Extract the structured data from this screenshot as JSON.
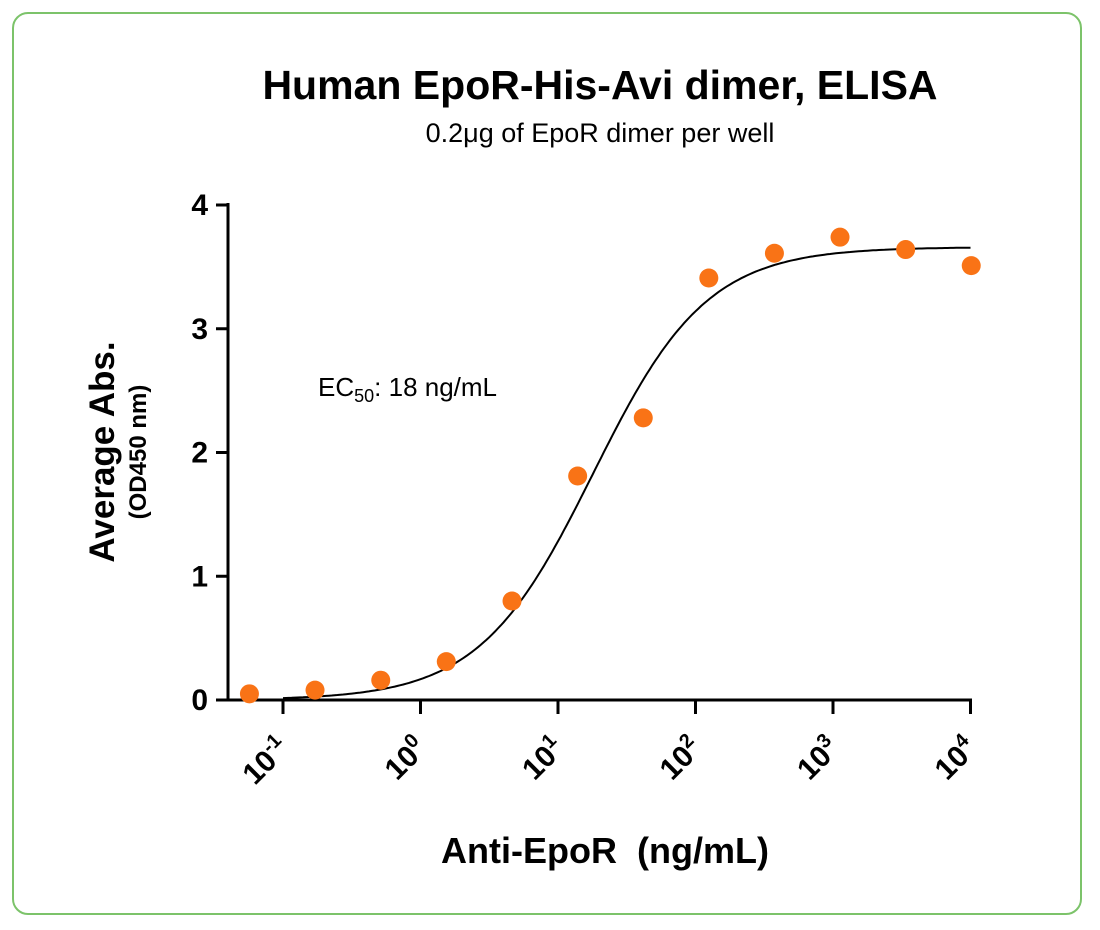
{
  "chart_data": {
    "type": "scatter",
    "title": "Human EpoR-His-Avi dimer, ELISA",
    "subtitle": "0.2μg of EpoR dimer per well",
    "xlabel": "Anti-EpoR  (ng/mL)",
    "ylabel": "Average Abs.",
    "ylabel_sub": "(OD450 nm)",
    "x_scale": "log",
    "xlim": [
      0.05,
      10000
    ],
    "ylim": [
      0,
      4
    ],
    "x_ticks": [
      {
        "base": "10",
        "exp": "-1",
        "value": 0.1
      },
      {
        "base": "10",
        "exp": "0",
        "value": 1
      },
      {
        "base": "10",
        "exp": "1",
        "value": 10
      },
      {
        "base": "10",
        "exp": "2",
        "value": 100
      },
      {
        "base": "10",
        "exp": "3",
        "value": 1000
      },
      {
        "base": "10",
        "exp": "4",
        "value": 10000
      }
    ],
    "y_ticks": [
      "0",
      "1",
      "2",
      "3",
      "4"
    ],
    "annotation": {
      "prefix": "EC",
      "sub": "50",
      "suffix": ": 18 ng/mL"
    },
    "point_color": "#f97316",
    "curve_color": "#000000",
    "series": [
      {
        "x": [
          0.057,
          0.171,
          0.514,
          1.54,
          4.63,
          13.9,
          41.7,
          125,
          375,
          1125,
          3375,
          10125
        ],
        "y": [
          0.05,
          0.08,
          0.16,
          0.31,
          0.8,
          1.81,
          2.28,
          3.41,
          3.61,
          3.74,
          3.64,
          3.51
        ]
      }
    ],
    "fit": {
      "bottom": 0.0,
      "top": 3.66,
      "ec50": 18,
      "hill": 1.05,
      "x_range": [
        0.1,
        10000
      ]
    },
    "grid": false,
    "legend": "none"
  }
}
